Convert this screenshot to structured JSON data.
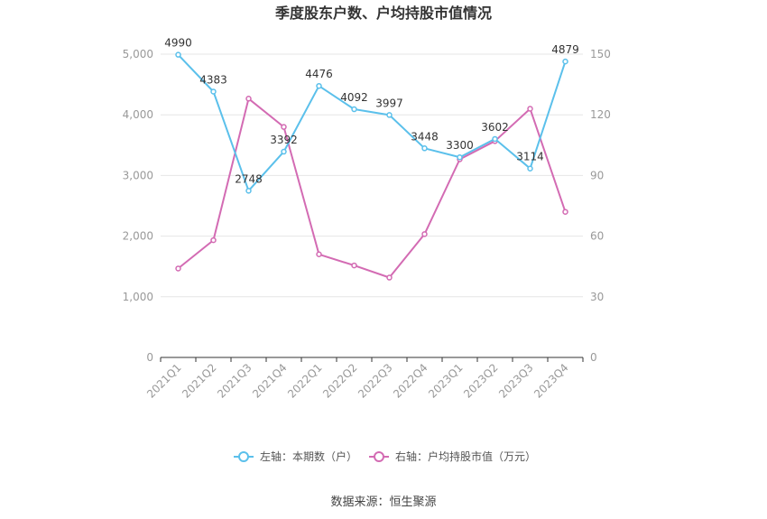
{
  "chart_data": {
    "type": "line",
    "title": "季度股东户数、户均持股市值情况",
    "categories": [
      "2021Q1",
      "2021Q2",
      "2021Q3",
      "2021Q4",
      "2022Q1",
      "2022Q2",
      "2022Q3",
      "2022Q4",
      "2023Q1",
      "2023Q2",
      "2023Q3",
      "2023Q4"
    ],
    "left_axis": {
      "min": 0,
      "max": 5000,
      "ticks": [
        "0",
        "1,000",
        "2,000",
        "3,000",
        "4,000",
        "5,000"
      ]
    },
    "right_axis": {
      "min": 0,
      "max": 150,
      "ticks": [
        "0",
        "30",
        "60",
        "90",
        "120",
        "150"
      ]
    },
    "series": [
      {
        "name": "左轴：本期数（户）",
        "axis": "left",
        "color": "#5bc0eb",
        "values": [
          4990,
          4383,
          2748,
          3392,
          4476,
          4092,
          3997,
          3448,
          3300,
          3602,
          3114,
          4879
        ],
        "labels": [
          "4990",
          "4383",
          "2748",
          "3392",
          "4476",
          "4092",
          "3997",
          "3448",
          "3300",
          "3602",
          "3114",
          "4879"
        ]
      },
      {
        "name": "右轴：户均持股市值（万元）",
        "axis": "right",
        "color": "#d36bb3",
        "values": [
          44,
          58,
          128,
          114,
          51,
          45.5,
          39.5,
          61,
          98,
          107,
          123,
          72
        ]
      }
    ],
    "grid": true,
    "legend_position": "bottom"
  },
  "footer": {
    "source": "数据来源：恒生聚源"
  }
}
